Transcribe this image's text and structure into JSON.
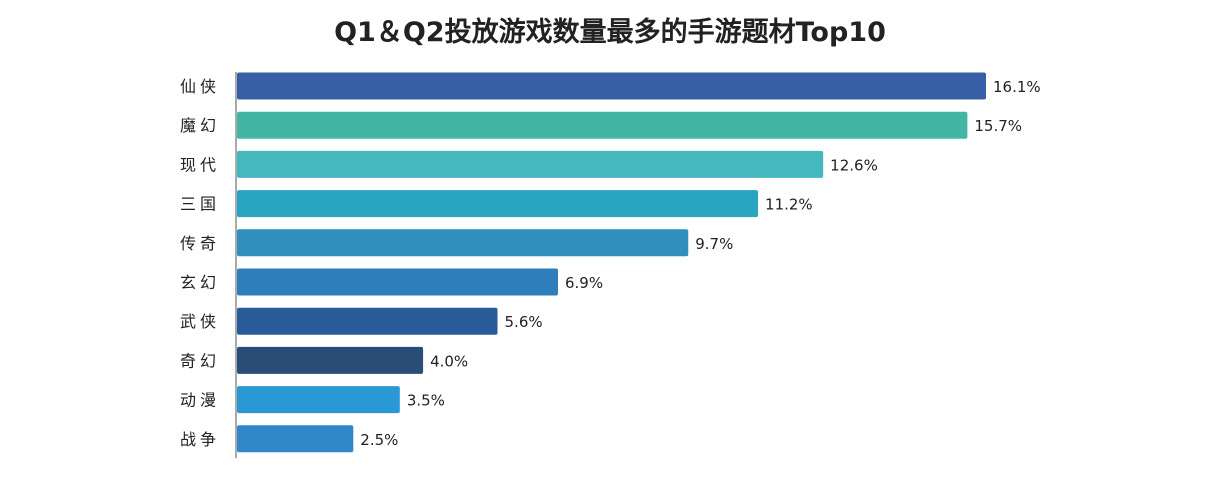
{
  "chart_data": {
    "type": "bar",
    "orientation": "horizontal",
    "title": "Q1＆Q2投放游戏数量最多的手游题材Top10",
    "categories": [
      "仙侠",
      "魔幻",
      "现代",
      "三国",
      "传奇",
      "玄幻",
      "武侠",
      "奇幻",
      "动漫",
      "战争"
    ],
    "values": [
      16.1,
      15.7,
      12.6,
      11.2,
      9.7,
      6.9,
      5.6,
      4.0,
      3.5,
      2.5
    ],
    "value_labels": [
      "16.1%",
      "15.7%",
      "12.6%",
      "11.2%",
      "9.7%",
      "6.9%",
      "5.6%",
      "4.0%",
      "3.5%",
      "2.5%"
    ],
    "colors": [
      "#365fa6",
      "#43b6a3",
      "#45b7be",
      "#2aa5c1",
      "#318fbe",
      "#2e7fb9",
      "#295b98",
      "#2a4d78",
      "#2a98d4",
      "#2f86c8"
    ],
    "xlim": [
      0,
      16.1
    ],
    "grid": false,
    "legend": "none"
  }
}
